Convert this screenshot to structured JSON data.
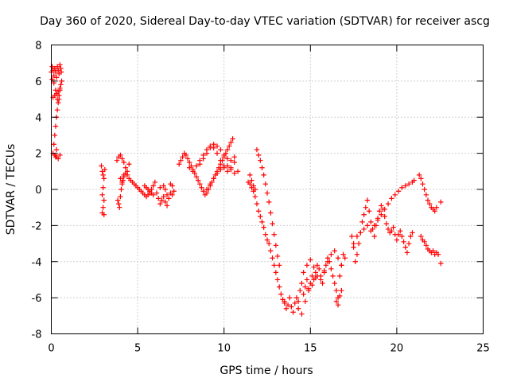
{
  "chart_data": {
    "type": "scatter",
    "title": "Day 360 of 2020, Sidereal Day-to-day VTEC variation (SDTVAR) for receiver ascg",
    "xlabel": "GPS time / hours",
    "ylabel": "SDTVAR / TECUs",
    "xlim": [
      0,
      25
    ],
    "ylim": [
      -8,
      8
    ],
    "xticks": [
      "0",
      "5",
      "10",
      "15",
      "20",
      "25"
    ],
    "yticks": [
      "-8",
      "-6",
      "-4",
      "-2",
      "0",
      "2",
      "4",
      "6",
      "8"
    ],
    "grid": true,
    "marker": "+",
    "color": "#ff0000",
    "series": [
      {
        "x": [
          0.0,
          0.05,
          0.1,
          0.15,
          0.2,
          0.25,
          0.3,
          0.35,
          0.4,
          0.45,
          0.5,
          0.1,
          0.2,
          0.3,
          0.4,
          0.5,
          0.55,
          0.6,
          0.05,
          0.15,
          0.25,
          0.35,
          0.45,
          0.55,
          0.1,
          0.2,
          0.3,
          0.4,
          0.5,
          0.58,
          0.15,
          0.2,
          0.25,
          0.3,
          0.35,
          0.4,
          0.45,
          0.5,
          0.25,
          0.3
        ],
        "y": [
          6.5,
          6.8,
          6.6,
          6.3,
          6.7,
          6.5,
          6.2,
          6.8,
          6.6,
          6.4,
          6.9,
          5.1,
          5.2,
          5.3,
          5.4,
          5.6,
          5.8,
          6.0,
          6.1,
          5.9,
          5.5,
          5.0,
          5.2,
          6.7,
          2.0,
          1.9,
          1.8,
          1.7,
          1.9,
          6.5,
          2.5,
          3.0,
          3.5,
          4.0,
          4.4,
          4.8,
          5.0,
          5.5,
          1.8,
          2.2
        ]
      },
      {
        "x": [
          2.9,
          2.95,
          3.0,
          3.05,
          3.1,
          2.95,
          3.0,
          3.05,
          3.0,
          2.95,
          3.05
        ],
        "y": [
          1.3,
          1.0,
          0.8,
          0.6,
          1.1,
          -0.3,
          0.1,
          -0.6,
          -1.0,
          -1.3,
          -1.4
        ]
      },
      {
        "x": [
          3.8,
          3.9,
          4.0,
          4.1,
          4.2,
          4.3,
          4.4,
          4.5,
          4.0,
          4.1,
          4.2,
          3.85,
          3.9,
          3.95,
          4.0,
          4.05,
          4.1,
          4.15,
          4.2,
          4.3,
          4.4,
          4.5,
          4.6,
          4.7,
          4.8,
          4.9,
          5.0,
          5.1,
          5.2,
          5.3,
          5.4,
          5.5,
          5.6,
          5.7,
          5.8,
          5.9,
          6.0,
          5.4,
          5.5,
          5.6,
          5.7,
          5.8,
          5.9
        ],
        "y": [
          1.6,
          1.8,
          1.9,
          1.7,
          1.5,
          1.2,
          1.0,
          1.4,
          0.6,
          0.4,
          0.8,
          -0.6,
          -0.8,
          -1.0,
          -0.4,
          0.0,
          0.3,
          0.5,
          0.7,
          0.9,
          0.8,
          0.6,
          0.5,
          0.4,
          0.3,
          0.2,
          0.1,
          0.0,
          -0.1,
          -0.2,
          -0.3,
          -0.4,
          -0.3,
          -0.2,
          0.0,
          0.2,
          0.4,
          0.2,
          0.1,
          0.0,
          -0.1,
          -0.2,
          -0.3
        ]
      },
      {
        "x": [
          6.1,
          6.2,
          6.3,
          6.4,
          6.5,
          6.6,
          6.7,
          6.8,
          6.9,
          7.0,
          7.1,
          6.3,
          6.5,
          6.6,
          6.7,
          6.9,
          7.0
        ],
        "y": [
          -0.2,
          -0.5,
          -0.8,
          -0.6,
          -0.4,
          -0.7,
          -0.9,
          -0.5,
          -0.2,
          -0.3,
          -0.1,
          0.1,
          0.2,
          0.0,
          -0.3,
          0.3,
          0.2
        ]
      },
      {
        "x": [
          7.4,
          7.5,
          7.6,
          7.7,
          7.8,
          7.9,
          8.0,
          8.1,
          8.2,
          8.3,
          8.4,
          8.5,
          8.6,
          8.7,
          8.8,
          8.9,
          9.0,
          9.1,
          9.2,
          9.3,
          9.4,
          9.5,
          9.6,
          9.7,
          9.8,
          9.9,
          10.0,
          10.1,
          10.2,
          10.3,
          10.4,
          10.5
        ],
        "y": [
          1.4,
          1.6,
          1.8,
          2.0,
          1.9,
          1.7,
          1.5,
          1.3,
          1.1,
          0.9,
          0.7,
          0.5,
          0.3,
          0.1,
          -0.1,
          -0.3,
          -0.2,
          0.0,
          0.2,
          0.4,
          0.6,
          0.8,
          1.0,
          1.2,
          1.4,
          1.6,
          1.8,
          2.0,
          2.2,
          2.4,
          2.6,
          2.8
        ]
      },
      {
        "x": [
          8.0,
          8.2,
          8.4,
          8.6,
          8.8,
          9.0,
          9.2,
          9.4,
          9.6,
          9.8,
          10.0,
          10.2,
          10.4,
          10.6,
          9.0,
          9.2,
          9.4,
          9.6,
          9.8,
          10.0,
          10.2,
          10.4,
          10.6,
          10.8,
          8.6,
          8.8,
          9.0,
          9.2,
          9.4,
          9.6,
          9.8,
          10.0,
          10.2,
          10.4,
          10.6
        ],
        "y": [
          1.2,
          1.0,
          1.3,
          1.6,
          1.9,
          2.2,
          2.4,
          2.3,
          2.0,
          1.6,
          1.3,
          1.0,
          1.2,
          1.5,
          0.0,
          0.3,
          0.6,
          0.9,
          1.1,
          1.2,
          1.3,
          1.1,
          0.9,
          1.0,
          1.4,
          1.7,
          2.0,
          2.3,
          2.5,
          2.4,
          2.2,
          1.9,
          1.7,
          1.6,
          1.8
        ]
      },
      {
        "x": [
          11.4,
          11.5,
          11.6,
          11.7,
          11.8,
          11.9,
          12.0,
          12.1,
          12.2,
          12.3,
          12.4,
          12.5,
          12.6,
          12.7,
          12.8,
          12.9,
          13.0,
          13.1,
          13.2,
          13.3,
          13.4,
          13.5,
          11.9,
          12.0,
          12.1,
          12.2,
          12.3,
          12.4,
          12.5,
          12.6,
          12.7,
          12.8,
          12.9,
          13.0,
          13.1,
          13.2,
          11.5,
          11.6,
          11.7,
          11.8
        ],
        "y": [
          0.4,
          0.3,
          0.1,
          -0.1,
          -0.4,
          -0.8,
          -1.2,
          -1.5,
          -1.8,
          -2.1,
          -2.5,
          -2.8,
          -3.0,
          -3.4,
          -3.8,
          -4.2,
          -4.6,
          -5.0,
          -5.4,
          -5.8,
          -6.1,
          -6.3,
          2.2,
          1.9,
          1.6,
          1.2,
          0.8,
          0.3,
          -0.2,
          -0.7,
          -1.3,
          -1.9,
          -2.5,
          -3.1,
          -3.7,
          -4.2,
          0.8,
          0.5,
          0.2,
          0.0
        ]
      },
      {
        "x": [
          13.5,
          13.6,
          13.7,
          13.8,
          13.9,
          14.0,
          14.1,
          14.2,
          14.3,
          14.4,
          14.5,
          14.6,
          14.7,
          14.8,
          14.9,
          15.0,
          15.1,
          15.2,
          15.3,
          15.4,
          15.5,
          15.6,
          15.7,
          15.8,
          15.9,
          16.0,
          16.1,
          16.2,
          16.3,
          16.4,
          16.5,
          16.6,
          16.7,
          16.8,
          16.9,
          17.0
        ],
        "y": [
          -6.2,
          -6.6,
          -6.4,
          -6.0,
          -6.5,
          -6.8,
          -6.3,
          -6.0,
          -6.2,
          -5.6,
          -5.2,
          -5.8,
          -5.4,
          -5.0,
          -5.6,
          -5.2,
          -4.8,
          -5.0,
          -4.6,
          -4.2,
          -4.4,
          -4.8,
          -5.2,
          -4.6,
          -4.2,
          -3.8,
          -4.0,
          -4.4,
          -4.8,
          -5.2,
          -5.6,
          -6.0,
          -4.8,
          -4.2,
          -3.6,
          -3.8
        ]
      },
      {
        "x": [
          14.6,
          14.8,
          15.0,
          15.2,
          15.4,
          15.6,
          15.8,
          16.0,
          16.2,
          16.4,
          16.6,
          16.8,
          14.3,
          14.5,
          14.7,
          14.9,
          15.1,
          15.3,
          16.5,
          16.6,
          16.7,
          16.8
        ],
        "y": [
          -4.6,
          -4.2,
          -3.9,
          -4.3,
          -4.8,
          -5.0,
          -4.5,
          -4.0,
          -3.6,
          -3.4,
          -3.8,
          -4.2,
          -6.6,
          -6.9,
          -6.2,
          -5.5,
          -5.3,
          -4.9,
          -6.2,
          -6.4,
          -5.9,
          -5.6
        ]
      },
      {
        "x": [
          17.4,
          17.5,
          17.6,
          17.7,
          17.8,
          17.9,
          18.0,
          18.1,
          18.2,
          18.3,
          18.4,
          18.5,
          18.6,
          18.7,
          18.8,
          18.9,
          19.0,
          19.1,
          19.2,
          19.3,
          19.4,
          19.5,
          19.6,
          19.7,
          19.8,
          19.9,
          20.0,
          20.1,
          20.2,
          20.3,
          20.4,
          20.5,
          20.6,
          20.7,
          20.8,
          20.9
        ],
        "y": [
          -2.6,
          -3.2,
          -4.0,
          -3.6,
          -3.0,
          -2.4,
          -1.8,
          -1.4,
          -1.0,
          -0.6,
          -1.2,
          -1.8,
          -2.2,
          -2.6,
          -2.0,
          -1.6,
          -1.2,
          -0.9,
          -1.1,
          -1.5,
          -1.9,
          -2.2,
          -2.4,
          -2.3,
          -2.1,
          -2.5,
          -2.8,
          -2.5,
          -2.3,
          -2.6,
          -2.9,
          -3.2,
          -3.5,
          -3.0,
          -2.6,
          -2.4
        ]
      },
      {
        "x": [
          17.5,
          17.7,
          17.9,
          18.1,
          18.3,
          18.5,
          18.7,
          18.9,
          19.1,
          19.3,
          19.5,
          19.7,
          19.9,
          20.1,
          20.3,
          20.5,
          20.7,
          20.9,
          21.0
        ],
        "y": [
          -3.0,
          -2.6,
          -2.4,
          -2.2,
          -2.0,
          -2.3,
          -2.0,
          -1.7,
          -1.4,
          -1.1,
          -0.8,
          -0.5,
          -0.3,
          -0.1,
          0.1,
          0.2,
          0.3,
          0.4,
          0.5
        ]
      },
      {
        "x": [
          21.3,
          21.4,
          21.5,
          21.6,
          21.7,
          21.8,
          21.9,
          22.0,
          22.1,
          22.2,
          22.3,
          22.55,
          21.4,
          21.5,
          21.6,
          21.7,
          21.8,
          21.9,
          22.0,
          22.1,
          22.2,
          22.3,
          22.4,
          22.55
        ],
        "y": [
          0.8,
          0.6,
          0.3,
          0.0,
          -0.3,
          -0.6,
          -0.8,
          -1.0,
          -1.1,
          -1.2,
          -1.0,
          -0.7,
          -2.6,
          -2.8,
          -2.9,
          -3.1,
          -3.3,
          -3.4,
          -3.5,
          -3.4,
          -3.6,
          -3.5,
          -3.6,
          -4.1
        ]
      }
    ]
  }
}
